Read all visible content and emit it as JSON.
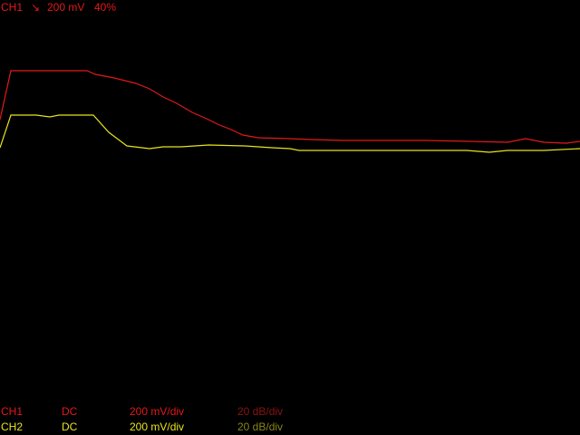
{
  "trigger": {
    "channel": "CH1",
    "slope_symbol": "↘",
    "slope": "falling",
    "level": "200 mV",
    "position": "40%"
  },
  "channels": [
    {
      "name": "CH1",
      "coupling": "DC",
      "volts_per_div": "200 mV/div",
      "math_scale": "20 dB/div",
      "color": "#e31919",
      "dim_color": "#8a1414"
    },
    {
      "name": "CH2",
      "coupling": "DC",
      "volts_per_div": "200 mV/div",
      "math_scale": "20 dB/div",
      "color": "#e8e21c",
      "dim_color": "#8a8616"
    }
  ],
  "colors": {
    "background": "#000000"
  },
  "traces": [
    {
      "name": "CH1",
      "points": [
        [
          0,
          132
        ],
        [
          12,
          78
        ],
        [
          96,
          78
        ],
        [
          105,
          82
        ],
        [
          126,
          86
        ],
        [
          150,
          92
        ],
        [
          165,
          98
        ],
        [
          180,
          107
        ],
        [
          195,
          114
        ],
        [
          212,
          124
        ],
        [
          228,
          131
        ],
        [
          240,
          137
        ],
        [
          255,
          143
        ],
        [
          268,
          149
        ],
        [
          285,
          152
        ],
        [
          320,
          153
        ],
        [
          345,
          154
        ],
        [
          380,
          155
        ],
        [
          470,
          155
        ],
        [
          520,
          156
        ],
        [
          560,
          157
        ],
        [
          580,
          153
        ],
        [
          600,
          157
        ],
        [
          625,
          158
        ],
        [
          640,
          156
        ]
      ]
    },
    {
      "name": "CH2",
      "points": [
        [
          0,
          163
        ],
        [
          12,
          127
        ],
        [
          40,
          127
        ],
        [
          55,
          129
        ],
        [
          65,
          127
        ],
        [
          85,
          127
        ],
        [
          103,
          127
        ],
        [
          120,
          146
        ],
        [
          140,
          161
        ],
        [
          165,
          164
        ],
        [
          180,
          162
        ],
        [
          200,
          162
        ],
        [
          230,
          160
        ],
        [
          270,
          161
        ],
        [
          300,
          163
        ],
        [
          320,
          164
        ],
        [
          330,
          166
        ],
        [
          515,
          166
        ],
        [
          540,
          168
        ],
        [
          560,
          166
        ],
        [
          600,
          166
        ],
        [
          640,
          164
        ]
      ]
    }
  ]
}
